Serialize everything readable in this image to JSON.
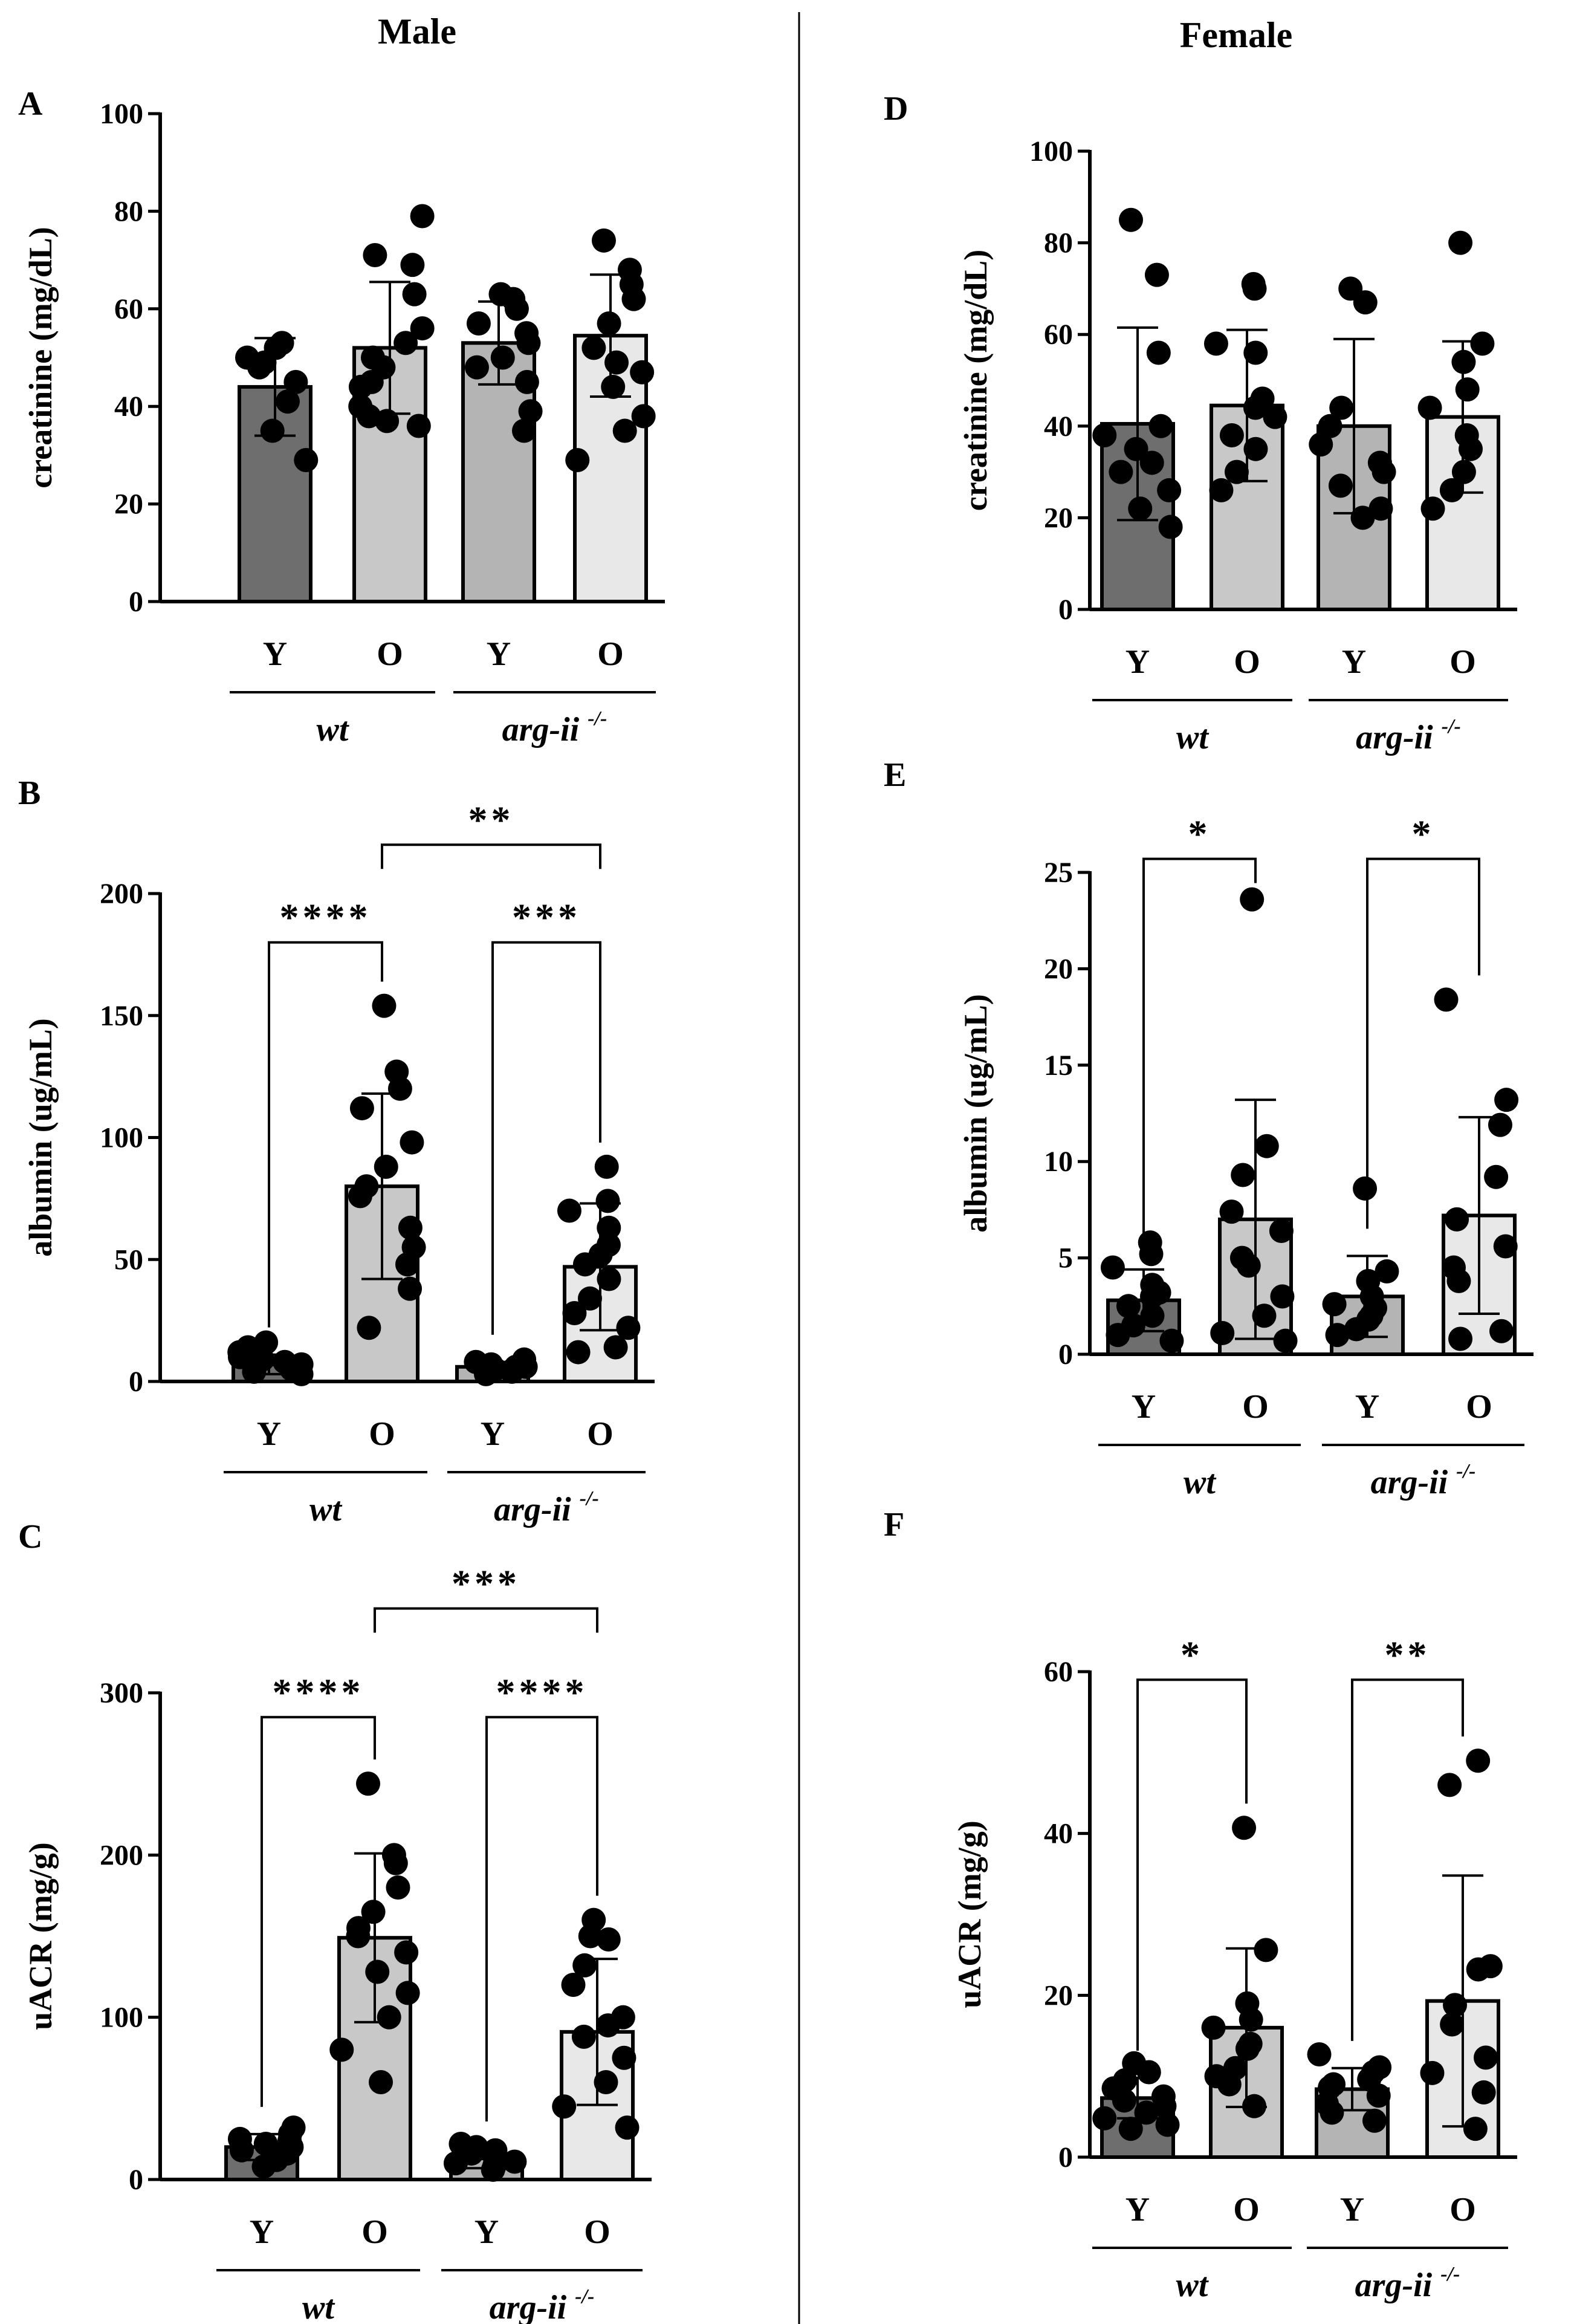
{
  "figure": {
    "titles": {
      "male": "Male",
      "female": "Female"
    },
    "colors": {
      "wt_Y": "#6e6e6e",
      "wt_O": "#c8c8c8",
      "arg_Y": "#b4b4b4",
      "arg_O": "#e8e8e8",
      "ink": "#000000"
    },
    "group_labels": {
      "wt": "wt",
      "arg": "arg-ii",
      "arg_sup": "-/-"
    }
  },
  "chart_data": [
    {
      "panel": "A",
      "sex": "Male",
      "type": "bar",
      "ylabel": "creatinine (mg/dL)",
      "ylim": [
        0,
        100
      ],
      "yticks": [
        0,
        20,
        40,
        60,
        80,
        100
      ],
      "categories": [
        "Y",
        "O",
        "Y",
        "O"
      ],
      "groups": [
        "wt",
        "wt",
        "arg-ii",
        "arg-ii"
      ],
      "means": [
        44,
        52,
        53,
        54.5
      ],
      "sd": [
        10,
        13.5,
        8.5,
        12.5
      ],
      "points": [
        [
          50,
          52,
          49,
          48,
          41,
          35,
          29,
          45,
          53
        ],
        [
          79,
          71,
          69,
          63,
          56,
          53,
          48,
          44,
          40,
          38,
          37,
          36,
          45,
          50
        ],
        [
          63,
          62,
          60,
          57,
          53,
          50,
          48,
          45,
          39,
          35,
          55
        ],
        [
          74,
          68,
          65,
          62,
          57,
          52,
          47,
          44,
          38,
          35,
          29,
          49
        ]
      ],
      "significance": []
    },
    {
      "panel": "B",
      "sex": "Male",
      "type": "bar",
      "ylabel": "albumin (ug/mL)",
      "ylim": [
        0,
        200
      ],
      "yticks": [
        0,
        50,
        100,
        150,
        200
      ],
      "categories": [
        "Y",
        "O",
        "Y",
        "O"
      ],
      "groups": [
        "wt",
        "wt",
        "arg-ii",
        "arg-ii"
      ],
      "means": [
        7,
        80,
        6,
        47
      ],
      "sd": [
        4,
        38,
        2,
        26
      ],
      "points": [
        [
          3,
          4,
          5,
          6,
          7,
          8,
          9,
          10,
          12,
          14,
          16
        ],
        [
          154,
          127,
          120,
          112,
          98,
          88,
          76,
          63,
          55,
          48,
          38,
          22,
          80
        ],
        [
          3,
          4,
          5,
          6,
          7,
          8,
          9,
          5,
          6
        ],
        [
          88,
          74,
          70,
          63,
          56,
          48,
          42,
          34,
          28,
          22,
          14,
          12,
          52
        ]
      ],
      "significance": [
        {
          "from": 0,
          "to": 1,
          "label": "****",
          "y": 180
        },
        {
          "from": 2,
          "to": 3,
          "label": "***",
          "y": 180
        },
        {
          "from": 1,
          "to": 3,
          "label": "**",
          "y": 220
        }
      ]
    },
    {
      "panel": "C",
      "sex": "Male",
      "type": "bar",
      "ylabel": "uACR (mg/g)",
      "ylim": [
        0,
        300
      ],
      "yticks": [
        0,
        100,
        200,
        300
      ],
      "categories": [
        "Y",
        "O",
        "Y",
        "O"
      ],
      "groups": [
        "wt",
        "wt",
        "arg-ii",
        "arg-ii"
      ],
      "means": [
        20,
        149,
        13,
        91
      ],
      "sd": [
        8,
        52,
        6,
        45
      ],
      "points": [
        [
          8,
          12,
          15,
          18,
          20,
          22,
          25,
          28,
          32,
          16,
          24
        ],
        [
          244,
          200,
          195,
          180,
          165,
          150,
          140,
          128,
          115,
          100,
          80,
          60,
          155
        ],
        [
          6,
          8,
          10,
          12,
          14,
          16,
          18,
          20,
          22,
          11
        ],
        [
          160,
          148,
          132,
          120,
          100,
          88,
          75,
          60,
          45,
          32,
          150,
          95
        ]
      ],
      "significance": [
        {
          "from": 0,
          "to": 1,
          "label": "****",
          "y": 285
        },
        {
          "from": 2,
          "to": 3,
          "label": "****",
          "y": 285
        },
        {
          "from": 1,
          "to": 3,
          "label": "***",
          "y": 352
        }
      ]
    },
    {
      "panel": "D",
      "sex": "Female",
      "type": "bar",
      "ylabel": "creatinine (mg/dL)",
      "ylim": [
        0,
        100
      ],
      "yticks": [
        0,
        20,
        40,
        60,
        80,
        100
      ],
      "categories": [
        "Y",
        "O",
        "Y",
        "O"
      ],
      "groups": [
        "wt",
        "wt",
        "arg-ii",
        "arg-ii"
      ],
      "means": [
        40.5,
        44.5,
        40,
        42
      ],
      "sd": [
        21,
        16.5,
        19,
        16.5
      ],
      "points": [
        [
          85,
          73,
          56,
          40,
          35,
          30,
          26,
          22,
          18,
          32,
          38
        ],
        [
          71,
          70,
          58,
          56,
          44,
          38,
          35,
          30,
          26,
          42,
          46
        ],
        [
          70,
          67,
          44,
          40,
          32,
          27,
          22,
          20,
          36,
          30
        ],
        [
          80,
          58,
          54,
          48,
          44,
          38,
          30,
          26,
          22,
          35
        ]
      ],
      "significance": []
    },
    {
      "panel": "E",
      "sex": "Female",
      "type": "bar",
      "ylabel": "albumin (ug/mL)",
      "ylim": [
        0,
        25
      ],
      "yticks": [
        0,
        5,
        10,
        15,
        20,
        25
      ],
      "categories": [
        "Y",
        "O",
        "Y",
        "O"
      ],
      "groups": [
        "wt",
        "wt",
        "arg-ii",
        "arg-ii"
      ],
      "means": [
        2.8,
        7,
        3,
        7.2
      ],
      "sd": [
        1.6,
        6.2,
        2.1,
        5.1
      ],
      "points": [
        [
          5.8,
          5.2,
          4.5,
          3.6,
          3,
          2.5,
          2,
          1.5,
          1,
          0.7,
          3.2
        ],
        [
          23.6,
          10.8,
          9.3,
          7.4,
          6.4,
          5,
          3,
          2,
          1.1,
          0.7,
          4.6
        ],
        [
          8.6,
          4.3,
          3.8,
          3,
          2.6,
          2,
          1.8,
          1.3,
          1,
          2.4
        ],
        [
          18.4,
          13.2,
          11.9,
          9.2,
          7,
          5.6,
          4.5,
          3.8,
          1.2,
          0.8
        ]
      ],
      "significance": [
        {
          "from": 0,
          "to": 1,
          "label": "*",
          "y": 25.7
        },
        {
          "from": 2,
          "to": 3,
          "label": "*",
          "y": 25.7
        }
      ]
    },
    {
      "panel": "F",
      "sex": "Female",
      "type": "bar",
      "ylabel": "uACR (mg/g)",
      "ylim": [
        0,
        60
      ],
      "yticks": [
        0,
        20,
        40,
        60
      ],
      "categories": [
        "Y",
        "O",
        "Y",
        "O"
      ],
      "groups": [
        "wt",
        "wt",
        "arg-ii",
        "arg-ii"
      ],
      "means": [
        7.3,
        16,
        8.4,
        19.3
      ],
      "sd": [
        2.5,
        9.8,
        2.6,
        15.5
      ],
      "points": [
        [
          11.6,
          10.5,
          9.5,
          8.5,
          7.5,
          7,
          6.3,
          5.5,
          4.8,
          4,
          3.5
        ],
        [
          40.7,
          25.6,
          19,
          17,
          16,
          14,
          13.4,
          11,
          10,
          6.3,
          9
        ],
        [
          12.7,
          11.1,
          10.5,
          9.6,
          8.6,
          7.6,
          6.6,
          5.5,
          4.5,
          9
        ],
        [
          49,
          46,
          23.6,
          23.2,
          18.8,
          16.4,
          12.3,
          10.4,
          8,
          3.5
        ]
      ],
      "significance": [
        {
          "from": 0,
          "to": 1,
          "label": "*",
          "y": 59
        },
        {
          "from": 2,
          "to": 3,
          "label": "**",
          "y": 59
        }
      ]
    }
  ]
}
